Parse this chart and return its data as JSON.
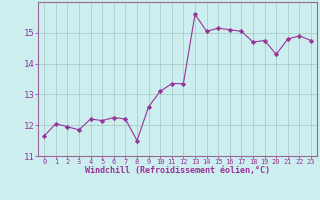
{
  "x": [
    0,
    1,
    2,
    3,
    4,
    5,
    6,
    7,
    8,
    9,
    10,
    11,
    12,
    13,
    14,
    15,
    16,
    17,
    18,
    19,
    20,
    21,
    22,
    23
  ],
  "y": [
    11.65,
    12.05,
    11.95,
    11.85,
    12.2,
    12.15,
    12.25,
    12.2,
    11.5,
    12.6,
    13.1,
    13.35,
    13.35,
    15.6,
    15.05,
    15.15,
    15.1,
    15.05,
    14.7,
    14.75,
    14.3,
    14.8,
    14.9,
    14.75
  ],
  "line_color": "#993399",
  "marker": "D",
  "marker_size": 2.2,
  "bg_color": "#cceeee",
  "grid_color": "#aacccc",
  "xlabel": "Windchill (Refroidissement éolien,°C)",
  "xlabel_color": "#993399",
  "tick_color": "#993399",
  "spine_color": "#996699",
  "ylim": [
    11,
    16
  ],
  "xlim": [
    -0.5,
    23.5
  ],
  "yticks": [
    11,
    12,
    13,
    14,
    15
  ],
  "xticks": [
    0,
    1,
    2,
    3,
    4,
    5,
    6,
    7,
    8,
    9,
    10,
    11,
    12,
    13,
    14,
    15,
    16,
    17,
    18,
    19,
    20,
    21,
    22,
    23
  ],
  "xlabel_fontsize": 6.0,
  "ytick_fontsize": 6.5,
  "xtick_fontsize": 5.0
}
